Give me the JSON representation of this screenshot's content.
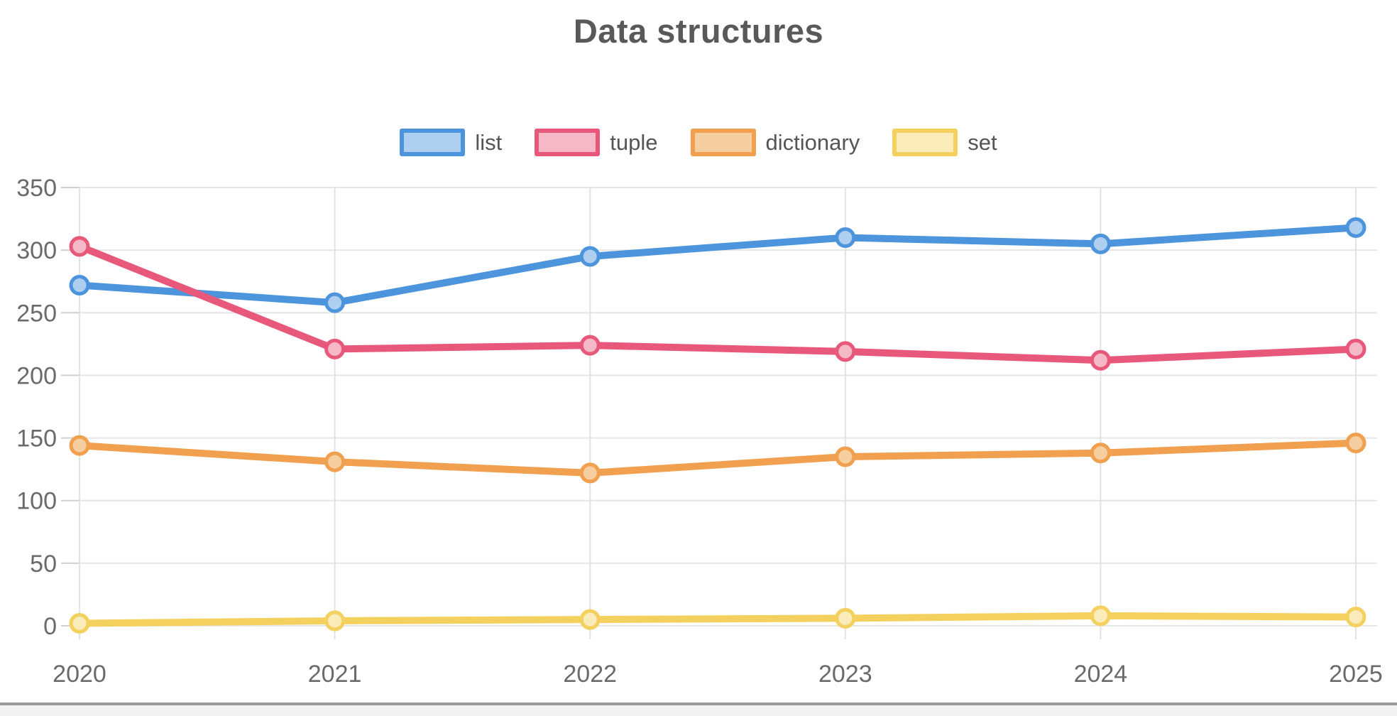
{
  "title": "Data structures",
  "chart_data": {
    "type": "line",
    "title": "Data structures",
    "x": [
      "2020",
      "2021",
      "2022",
      "2023",
      "2024",
      "2025"
    ],
    "series": [
      {
        "name": "list",
        "color": "#4c94db",
        "marker_fill": "#aecff0",
        "values": [
          272,
          258,
          295,
          310,
          305,
          318
        ]
      },
      {
        "name": "tuple",
        "color": "#e8587b",
        "marker_fill": "#f4b8c6",
        "values": [
          303,
          221,
          224,
          219,
          212,
          221
        ]
      },
      {
        "name": "dictionary",
        "color": "#f0a04e",
        "marker_fill": "#f6cfa0",
        "values": [
          144,
          131,
          122,
          135,
          138,
          146
        ]
      },
      {
        "name": "set",
        "color": "#f4d15f",
        "marker_fill": "#faebbb",
        "values": [
          2,
          4,
          5,
          6,
          8,
          7
        ]
      }
    ],
    "xlabel": "",
    "ylabel": "",
    "ylim": [
      0,
      350
    ],
    "yticks": [
      0,
      50,
      100,
      150,
      200,
      250,
      300,
      350
    ],
    "grid": true,
    "legend_position": "top",
    "legend_labels": [
      "list",
      "tuple",
      "dictionary",
      "set"
    ]
  },
  "colors": {
    "title_text": "#59595c",
    "axis_text": "#6a6a6a",
    "legend_text": "#555557",
    "h_gridline": "#e6e6e6",
    "v_gridline": "#e2e2e2",
    "tick_stub": "#d0d0d0",
    "divider": "#9b9b9b",
    "bottom_strip": "#f2f2f2"
  }
}
